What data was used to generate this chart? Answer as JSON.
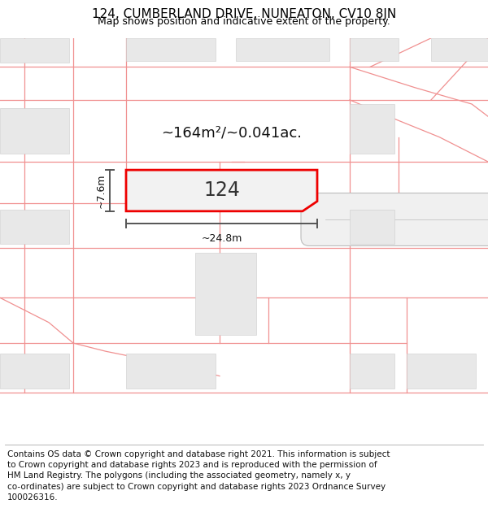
{
  "title_line1": "124, CUMBERLAND DRIVE, NUNEATON, CV10 8JN",
  "title_line2": "Map shows position and indicative extent of the property.",
  "footer_lines": [
    "Contains OS data © Crown copyright and database right 2021. This information is subject",
    "to Crown copyright and database rights 2023 and is reproduced with the permission of",
    "HM Land Registry. The polygons (including the associated geometry, namely x, y",
    "co-ordinates) are subject to Crown copyright and database rights 2023 Ordnance Survey",
    "100026316."
  ],
  "area_label": "~164m²/~0.041ac.",
  "number_label": "124",
  "width_label": "~24.8m",
  "height_label": "~7.6m",
  "bg_color": "#ffffff",
  "map_bg": "#ffffff",
  "highlight_color": "#ee0000",
  "building_fill": "#e8e8e8",
  "building_edge": "#cccccc",
  "line_color": "#f09090",
  "dim_line_color": "#555555",
  "title_fontsize": 11,
  "subtitle_fontsize": 9,
  "footer_fontsize": 7.5,
  "area_fontsize": 13,
  "number_fontsize": 17,
  "dim_fontsize": 9
}
